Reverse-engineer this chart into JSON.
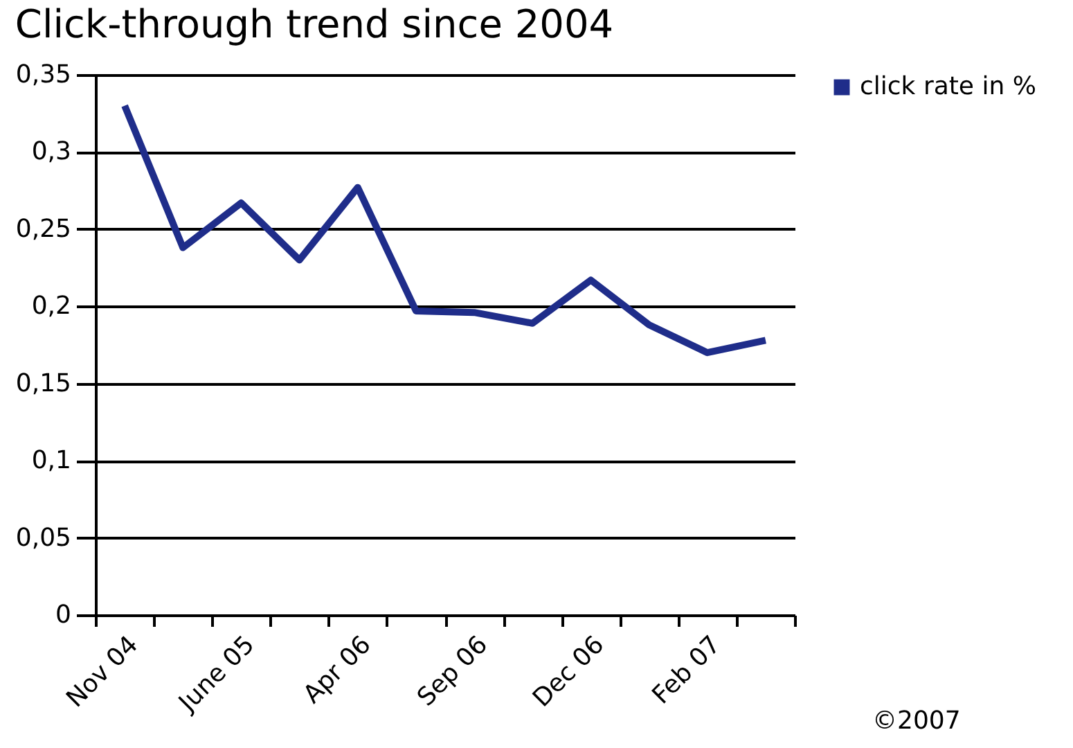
{
  "chart_data": {
    "type": "line",
    "title": "Click-through trend since 2004",
    "categories": [
      "Nov 04",
      null,
      "June 05",
      null,
      "Apr 06",
      null,
      "Sep 06",
      null,
      "Dec 06",
      null,
      "Feb 07",
      null
    ],
    "series": [
      {
        "name": "click rate in %",
        "color": "#1f2d8a",
        "values": [
          0.33,
          0.238,
          0.267,
          0.23,
          0.277,
          0.197,
          0.196,
          0.189,
          0.217,
          0.188,
          0.17,
          0.178
        ]
      }
    ],
    "ylim": [
      0,
      0.35
    ],
    "yticks": [
      0,
      {
        "value": 0.05,
        "label": "0,05"
      },
      {
        "value": 0.1,
        "label": "0,1"
      },
      {
        "value": 0.15,
        "label": "0,15"
      },
      {
        "value": 0.2,
        "label": "0,2"
      },
      {
        "value": 0.25,
        "label": "0,25"
      },
      {
        "value": 0.3,
        "label": "0,3"
      },
      {
        "value": 0.35,
        "label": "0,35"
      }
    ],
    "grid": "y",
    "legend": "right",
    "marker": "none",
    "line_style": "solid",
    "annotations": [
      "©2007"
    ]
  }
}
